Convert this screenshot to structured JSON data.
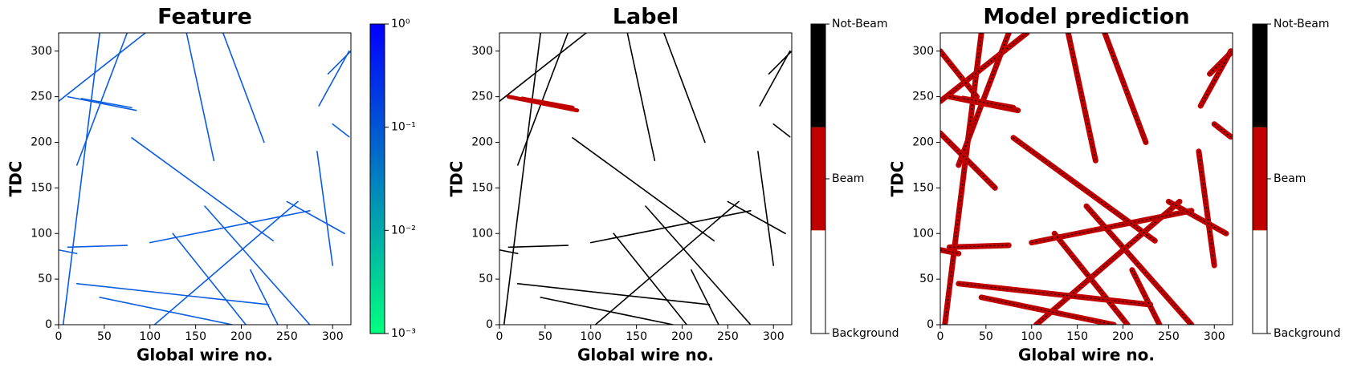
{
  "chart_data": [
    {
      "type": "heatmap",
      "title": "Feature",
      "xlabel": "Global wire no.",
      "ylabel": "TDC",
      "xlim": [
        0,
        320
      ],
      "ylim": [
        0,
        320
      ],
      "xticks": [
        0,
        50,
        100,
        150,
        200,
        250,
        300
      ],
      "yticks": [
        0,
        50,
        100,
        150,
        200,
        250,
        300
      ],
      "color": "#0a5ce0",
      "segments": [
        [
          5,
          0,
          45,
          320
        ],
        [
          0,
          245,
          95,
          320
        ],
        [
          75,
          320,
          20,
          175
        ],
        [
          105,
          0,
          262,
          135
        ],
        [
          10,
          85,
          75,
          87
        ],
        [
          100,
          90,
          275,
          125
        ],
        [
          20,
          45,
          230,
          22
        ],
        [
          80,
          205,
          235,
          92
        ],
        [
          160,
          130,
          275,
          0
        ],
        [
          125,
          100,
          205,
          0
        ],
        [
          180,
          320,
          225,
          200
        ],
        [
          283,
          190,
          300,
          65
        ],
        [
          250,
          135,
          313,
          100
        ],
        [
          140,
          320,
          170,
          180
        ],
        [
          295,
          275,
          320,
          300
        ],
        [
          285,
          240,
          318,
          300
        ],
        [
          45,
          30,
          190,
          0
        ],
        [
          210,
          60,
          240,
          0
        ],
        [
          0,
          82,
          20,
          78
        ],
        [
          300,
          220,
          318,
          206
        ],
        [
          10,
          250,
          85,
          235
        ],
        [
          25,
          248,
          80,
          238
        ]
      ],
      "colorbar": {
        "scale": "log",
        "clim": [
          0.001,
          1
        ],
        "colors": [
          "#00ff80",
          "#0000ff"
        ],
        "ticks": [
          {
            "value": 1,
            "label": "10⁰"
          },
          {
            "value": 0.1,
            "label": "10⁻¹"
          },
          {
            "value": 0.01,
            "label": "10⁻²"
          },
          {
            "value": 0.001,
            "label": "10⁻³"
          }
        ]
      }
    },
    {
      "type": "heatmap",
      "title": "Label",
      "xlabel": "Global wire no.",
      "ylabel": "TDC",
      "xlim": [
        0,
        320
      ],
      "ylim": [
        0,
        320
      ],
      "xticks": [
        0,
        50,
        100,
        150,
        200,
        250,
        300
      ],
      "yticks": [
        0,
        50,
        100,
        150,
        200,
        250,
        300
      ],
      "color": "#000000",
      "beam_color": "#c00000",
      "segments": [
        [
          5,
          0,
          45,
          320
        ],
        [
          0,
          245,
          95,
          320
        ],
        [
          75,
          320,
          20,
          175
        ],
        [
          105,
          0,
          262,
          135
        ],
        [
          10,
          85,
          75,
          87
        ],
        [
          100,
          90,
          275,
          125
        ],
        [
          20,
          45,
          230,
          22
        ],
        [
          80,
          205,
          235,
          92
        ],
        [
          160,
          130,
          275,
          0
        ],
        [
          125,
          100,
          205,
          0
        ],
        [
          180,
          320,
          225,
          200
        ],
        [
          283,
          190,
          300,
          65
        ],
        [
          250,
          135,
          313,
          100
        ],
        [
          140,
          320,
          170,
          180
        ],
        [
          295,
          275,
          320,
          300
        ],
        [
          285,
          240,
          318,
          300
        ],
        [
          45,
          30,
          190,
          0
        ],
        [
          210,
          60,
          240,
          0
        ],
        [
          0,
          82,
          20,
          78
        ],
        [
          300,
          220,
          318,
          206
        ]
      ],
      "beam_segments": [
        [
          10,
          250,
          85,
          235
        ],
        [
          25,
          248,
          80,
          238
        ]
      ],
      "colorbar": {
        "scale": "category",
        "clim": [
          0,
          2
        ],
        "colors": [
          "#ffffff",
          "#c00000",
          "#000000"
        ],
        "ticks": [
          {
            "value": 2,
            "label": "Not-Beam"
          },
          {
            "value": 1,
            "label": "Beam"
          },
          {
            "value": 0,
            "label": "Background"
          }
        ]
      }
    },
    {
      "type": "heatmap",
      "title": "Model prediction",
      "xlabel": "Global wire no.",
      "ylabel": "TDC",
      "xlim": [
        0,
        320
      ],
      "ylim": [
        0,
        320
      ],
      "xticks": [
        0,
        50,
        100,
        150,
        200,
        250,
        300
      ],
      "yticks": [
        0,
        50,
        100,
        150,
        200,
        250,
        300
      ],
      "color": "#c00000",
      "beam_color": "#c00000",
      "segments": [
        [
          5,
          0,
          45,
          320
        ],
        [
          0,
          245,
          95,
          320
        ],
        [
          75,
          320,
          20,
          175
        ],
        [
          105,
          0,
          262,
          135
        ],
        [
          10,
          85,
          75,
          87
        ],
        [
          100,
          90,
          275,
          125
        ],
        [
          20,
          45,
          230,
          22
        ],
        [
          80,
          205,
          235,
          92
        ],
        [
          160,
          130,
          275,
          0
        ],
        [
          125,
          100,
          205,
          0
        ],
        [
          180,
          320,
          225,
          200
        ],
        [
          283,
          190,
          300,
          65
        ],
        [
          250,
          135,
          313,
          100
        ],
        [
          140,
          320,
          170,
          180
        ],
        [
          295,
          275,
          320,
          300
        ],
        [
          285,
          240,
          318,
          300
        ],
        [
          45,
          30,
          190,
          0
        ],
        [
          210,
          60,
          240,
          0
        ],
        [
          0,
          82,
          20,
          78
        ],
        [
          300,
          220,
          318,
          206
        ],
        [
          0,
          300,
          40,
          250
        ],
        [
          0,
          210,
          60,
          150
        ]
      ],
      "beam_segments": [
        [
          10,
          250,
          85,
          235
        ],
        [
          25,
          248,
          80,
          238
        ]
      ],
      "colorbar": {
        "scale": "category",
        "clim": [
          0,
          2
        ],
        "colors": [
          "#ffffff",
          "#c00000",
          "#000000"
        ],
        "ticks": [
          {
            "value": 2,
            "label": "Not-Beam"
          },
          {
            "value": 1,
            "label": "Beam"
          },
          {
            "value": 0,
            "label": "Background"
          }
        ]
      }
    }
  ]
}
